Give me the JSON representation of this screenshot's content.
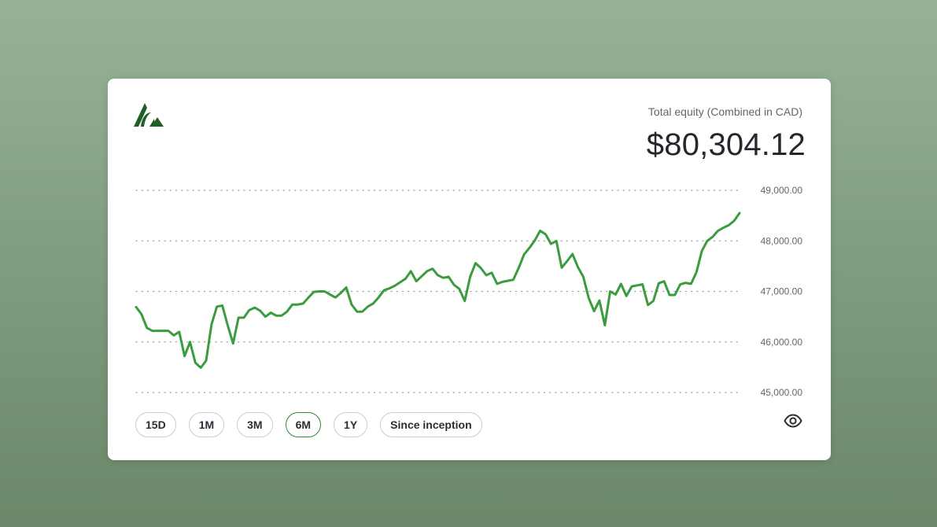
{
  "header": {
    "equity_label": "Total equity (Combined in CAD)",
    "equity_value": "$80,304.12"
  },
  "colors": {
    "line": "#3b9c3f",
    "accent": "#2e8b35",
    "logo": "#1f5e25"
  },
  "ranges": [
    {
      "label": "15D",
      "active": false
    },
    {
      "label": "1M",
      "active": false
    },
    {
      "label": "3M",
      "active": false
    },
    {
      "label": "6M",
      "active": true
    },
    {
      "label": "1Y",
      "active": false
    },
    {
      "label": "Since inception",
      "active": false
    }
  ],
  "icons": {
    "logo": "brand-logo-icon",
    "visibility": "eye-icon"
  },
  "chart_data": {
    "type": "line",
    "title": "",
    "xlabel": "",
    "ylabel": "",
    "ylim": [
      45000,
      49000
    ],
    "grid": true,
    "yticks": [
      {
        "value": 49000,
        "label": "49,000.00"
      },
      {
        "value": 48000,
        "label": "48,000.00"
      },
      {
        "value": 47000,
        "label": "47,000.00"
      },
      {
        "value": 46000,
        "label": "46,000.00"
      },
      {
        "value": 45000,
        "label": "45,000.00"
      }
    ],
    "series": [
      {
        "values": [
          46690,
          46550,
          46280,
          46220,
          46220,
          46220,
          46220,
          46130,
          46200,
          45720,
          46000,
          45590,
          45490,
          45630,
          46350,
          46700,
          46720,
          46330,
          45970,
          46480,
          46480,
          46630,
          46680,
          46620,
          46500,
          46580,
          46520,
          46520,
          46600,
          46740,
          46740,
          46760,
          46880,
          46990,
          47000,
          47000,
          46940,
          46880,
          46970,
          47080,
          46740,
          46600,
          46600,
          46700,
          46760,
          46880,
          47020,
          47060,
          47110,
          47180,
          47250,
          47400,
          47200,
          47300,
          47400,
          47450,
          47320,
          47270,
          47290,
          47130,
          47050,
          46810,
          47290,
          47560,
          47460,
          47320,
          47370,
          47150,
          47190,
          47210,
          47230,
          47460,
          47730,
          47860,
          48010,
          48200,
          48130,
          47940,
          48000,
          47470,
          47600,
          47740,
          47480,
          47290,
          46870,
          46610,
          46820,
          46330,
          47000,
          46940,
          47150,
          46910,
          47100,
          47120,
          47140,
          46730,
          46810,
          47160,
          47200,
          46930,
          46930,
          47140,
          47170,
          47150,
          47380,
          47800,
          48000,
          48080,
          48200,
          48260,
          48310,
          48400,
          48550
        ]
      }
    ]
  }
}
